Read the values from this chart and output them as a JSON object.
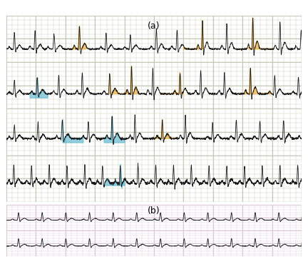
{
  "title_a": "(a)",
  "title_b": "(b)",
  "bg_a": "#e8e8e0",
  "bg_b": "#f5e8f0",
  "grid_color_a": "#c8c8b8",
  "grid_color_b": "#ddc8d8",
  "ecg_color": "#1a1a1a",
  "orange_color": "#e8a830",
  "blue_color": "#60b8d0",
  "orange_alpha": 0.65,
  "blue_alpha": 0.65,
  "fig_width": 4.32,
  "fig_height": 3.63,
  "dpi": 100
}
